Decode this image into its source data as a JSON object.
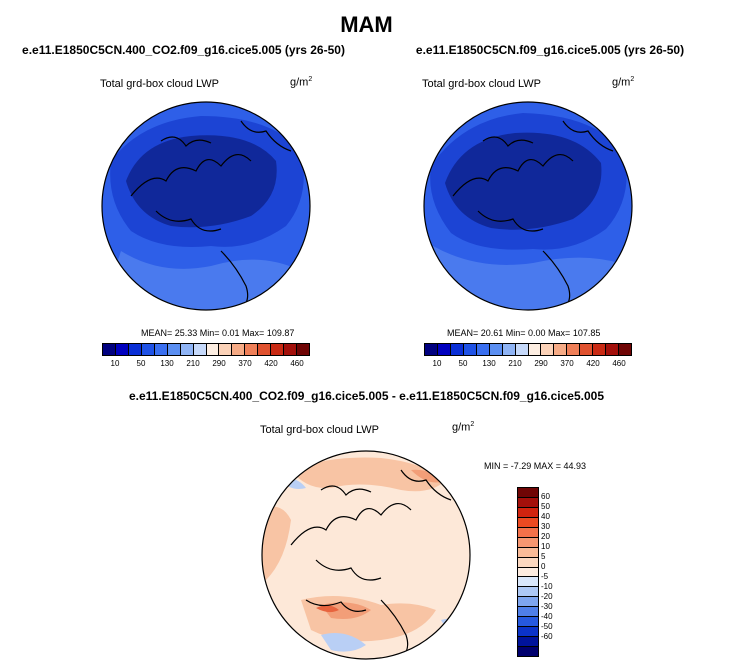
{
  "main_title": "MAM",
  "units_base": "g/m",
  "units_exp": "2",
  "panels": [
    {
      "title": "e.e11.E1850C5CN.400_CO2.f09_g16.cice5.005 (yrs 26-50)",
      "variable": "Total grd-box cloud LWP",
      "stats": "MEAN=  25.33  Min=   0.01  Max= 109.87"
    },
    {
      "title": "e.e11.E1850C5CN.f09_g16.cice5.005 (yrs 26-50)",
      "variable": "Total grd-box cloud LWP",
      "stats": "MEAN=  20.61  Min=   0.00  Max= 107.85"
    }
  ],
  "diff_panel": {
    "title": "e.e11.E1850C5CN.400_CO2.f09_g16.cice5.005 - e.e11.E1850C5CN.f09_g16.cice5.005",
    "variable": "Total grd-box cloud LWP",
    "stats": "MIN = -7.29 MAX = 44.93"
  },
  "colorbar_abs": {
    "colors": [
      "#00007f",
      "#0000bf",
      "#0a2fd6",
      "#1f52e6",
      "#3a6ff0",
      "#5b8ff2",
      "#8fb4f5",
      "#c6d9fa",
      "#fdeee2",
      "#fbd2b8",
      "#f6ab86",
      "#ef7f58",
      "#e0522f",
      "#c92a14",
      "#a3100b",
      "#6f0505"
    ],
    "tick_labels": [
      "10",
      "50",
      "130",
      "210",
      "290",
      "370",
      "420",
      "460"
    ]
  },
  "colorbar_diff": {
    "colors": [
      "#6f0505",
      "#a3100b",
      "#d1240f",
      "#ec4a22",
      "#f4714a",
      "#f79771",
      "#fabb98",
      "#fcd8c0",
      "#fdece0",
      "#d9e7fb",
      "#adc8f5",
      "#7ea5ef",
      "#4f7fe9",
      "#2659df",
      "#0b33c8",
      "#00139b",
      "#00006e"
    ],
    "tick_labels": [
      "60",
      "50",
      "40",
      "30",
      "20",
      "10",
      "5",
      "0",
      "-5",
      "-10",
      "-20",
      "-30",
      "-40",
      "-50",
      "-60"
    ]
  },
  "map_colors": {
    "abs_dark": "#10289a",
    "abs_mid": "#1c44d4",
    "abs_outer": "#2e5fe8",
    "abs_light": "#4a7aee",
    "diff_base": "#fde8d8",
    "diff_warm1": "#f8c4a4",
    "diff_warm2": "#f29e78",
    "diff_warm3": "#e8643e",
    "diff_cool": "#b9cff5",
    "coast": "#000000"
  }
}
